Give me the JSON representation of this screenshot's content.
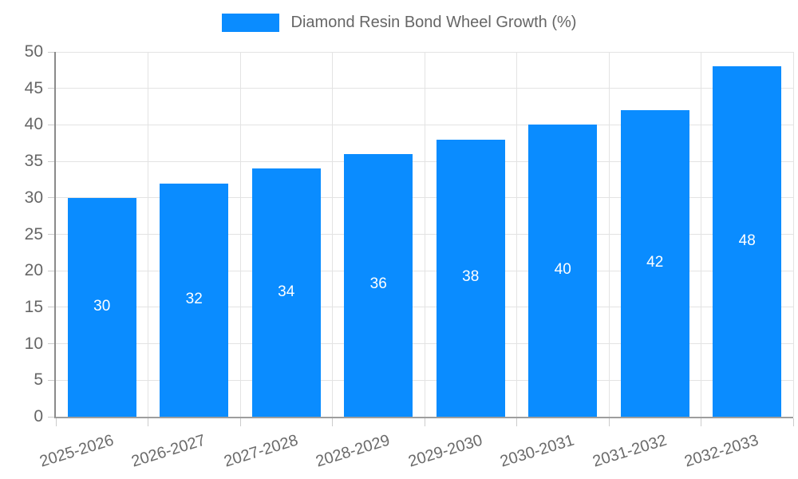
{
  "chart_data": {
    "type": "bar",
    "title": "Diamond Resin Bond Wheel Growth (%)",
    "legend": {
      "label": "Diamond Resin Bond Wheel Growth (%)",
      "position": "top-center"
    },
    "categories": [
      "2025-2026",
      "2026-2027",
      "2027-2028",
      "2028-2029",
      "2029-2030",
      "2030-2031",
      "2031-2032",
      "2032-2033"
    ],
    "values": [
      30,
      32,
      34,
      36,
      38,
      40,
      42,
      48
    ],
    "xlabel": "",
    "ylabel": "",
    "ylim": [
      0,
      50
    ],
    "ytick_step": 5,
    "yticks": [
      0,
      5,
      10,
      15,
      20,
      25,
      30,
      35,
      40,
      45,
      50
    ],
    "grid": true,
    "bar_color": "#0a8cff",
    "value_label_color": "#ffffff",
    "tick_label_color": "#666666",
    "grid_color": "#e3e3e3",
    "axis_color": "#8a8a8a",
    "x_label_rotation_deg": -17
  }
}
